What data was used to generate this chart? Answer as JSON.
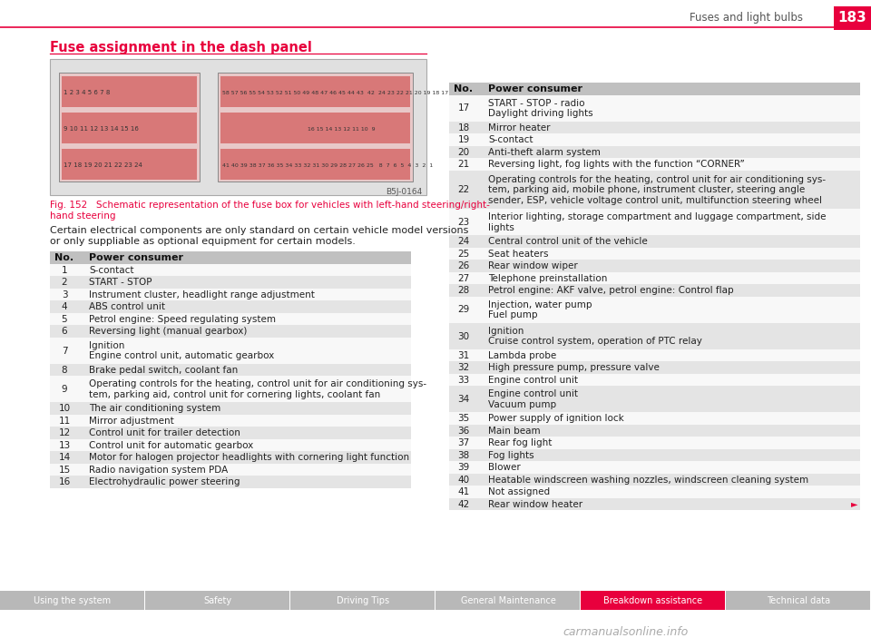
{
  "title_header": "Fuses and light bulbs",
  "page_number": "183",
  "section_title": "Fuse assignment in the dash panel",
  "fig_caption": "Fig. 152   Schematic representation of the fuse box for vehicles with left-hand steering/right-\nhand steering",
  "intro_text": "Certain electrical components are only standard on certain vehicle model versions\nor only suppliable as optional equipment for certain models.",
  "left_table_header": [
    "No.",
    "Power consumer"
  ],
  "left_table_rows": [
    [
      "1",
      "S-contact",
      1
    ],
    [
      "2",
      "START - STOP",
      1
    ],
    [
      "3",
      "Instrument cluster, headlight range adjustment",
      1
    ],
    [
      "4",
      "ABS control unit",
      1
    ],
    [
      "5",
      "Petrol engine: Speed regulating system",
      1
    ],
    [
      "6",
      "Reversing light (manual gearbox)",
      1
    ],
    [
      "7",
      "Ignition\nEngine control unit, automatic gearbox",
      2
    ],
    [
      "8",
      "Brake pedal switch, coolant fan",
      1
    ],
    [
      "9",
      "Operating controls for the heating, control unit for air conditioning sys-\ntem, parking aid, control unit for cornering lights, coolant fan",
      2
    ],
    [
      "10",
      "The air conditioning system",
      1
    ],
    [
      "11",
      "Mirror adjustment",
      1
    ],
    [
      "12",
      "Control unit for trailer detection",
      1
    ],
    [
      "13",
      "Control unit for automatic gearbox",
      1
    ],
    [
      "14",
      "Motor for halogen projector headlights with cornering light function",
      1
    ],
    [
      "15",
      "Radio navigation system PDA",
      1
    ],
    [
      "16",
      "Electrohydraulic power steering",
      1
    ]
  ],
  "right_table_rows": [
    [
      "17",
      "START - STOP - radio\nDaylight driving lights",
      2
    ],
    [
      "18",
      "Mirror heater",
      1
    ],
    [
      "19",
      "S-contact",
      1
    ],
    [
      "20",
      "Anti-theft alarm system",
      1
    ],
    [
      "21",
      "Reversing light, fog lights with the function “CORNER”",
      1
    ],
    [
      "22",
      "Operating controls for the heating, control unit for air conditioning sys-\ntem, parking aid, mobile phone, instrument cluster, steering angle\nsender, ESP, vehicle voltage control unit, multifunction steering wheel",
      3
    ],
    [
      "23",
      "Interior lighting, storage compartment and luggage compartment, side\nlights",
      2
    ],
    [
      "24",
      "Central control unit of the vehicle",
      1
    ],
    [
      "25",
      "Seat heaters",
      1
    ],
    [
      "26",
      "Rear window wiper",
      1
    ],
    [
      "27",
      "Telephone preinstallation",
      1
    ],
    [
      "28",
      "Petrol engine: AKF valve, petrol engine: Control flap",
      1
    ],
    [
      "29",
      "Injection, water pump\nFuel pump",
      2
    ],
    [
      "30",
      "Ignition\nCruise control system, operation of PTC relay",
      2
    ],
    [
      "31",
      "Lambda probe",
      1
    ],
    [
      "32",
      "High pressure pump, pressure valve",
      1
    ],
    [
      "33",
      "Engine control unit",
      1
    ],
    [
      "34",
      "Engine control unit\nVacuum pump",
      2
    ],
    [
      "35",
      "Power supply of ignition lock",
      1
    ],
    [
      "36",
      "Main beam",
      1
    ],
    [
      "37",
      "Rear fog light",
      1
    ],
    [
      "38",
      "Fog lights",
      1
    ],
    [
      "39",
      "Blower",
      1
    ],
    [
      "40",
      "Heatable windscreen washing nozzles, windscreen cleaning system",
      1
    ],
    [
      "41",
      "Not assigned",
      1
    ],
    [
      "42",
      "Rear window heater",
      1
    ]
  ],
  "nav_tabs": [
    "Using the system",
    "Safety",
    "Driving Tips",
    "General Maintenance",
    "Breakdown assistance",
    "Technical data"
  ],
  "active_tab_idx": 4,
  "bg_color": "#ffffff",
  "header_line_color": "#e8003d",
  "section_title_color": "#e8003d",
  "table_header_bg": "#c0c0c0",
  "table_alt_row_bg": "#e4e4e4",
  "table_white_row_bg": "#f8f8f8",
  "nav_bg": "#b8b8b8",
  "nav_active_bg": "#e8003d",
  "nav_text_color": "#ffffff",
  "page_num_bg": "#e8003d",
  "page_num_color": "#ffffff",
  "header_text_color": "#555555",
  "watermark_color": "#aaaaaa",
  "caption_color": "#e8003d",
  "fuse_img_bg": "#e0e0e0",
  "fuse_panel_bg": "#f5d8d8",
  "fuse_stripe_color": "#d87878"
}
